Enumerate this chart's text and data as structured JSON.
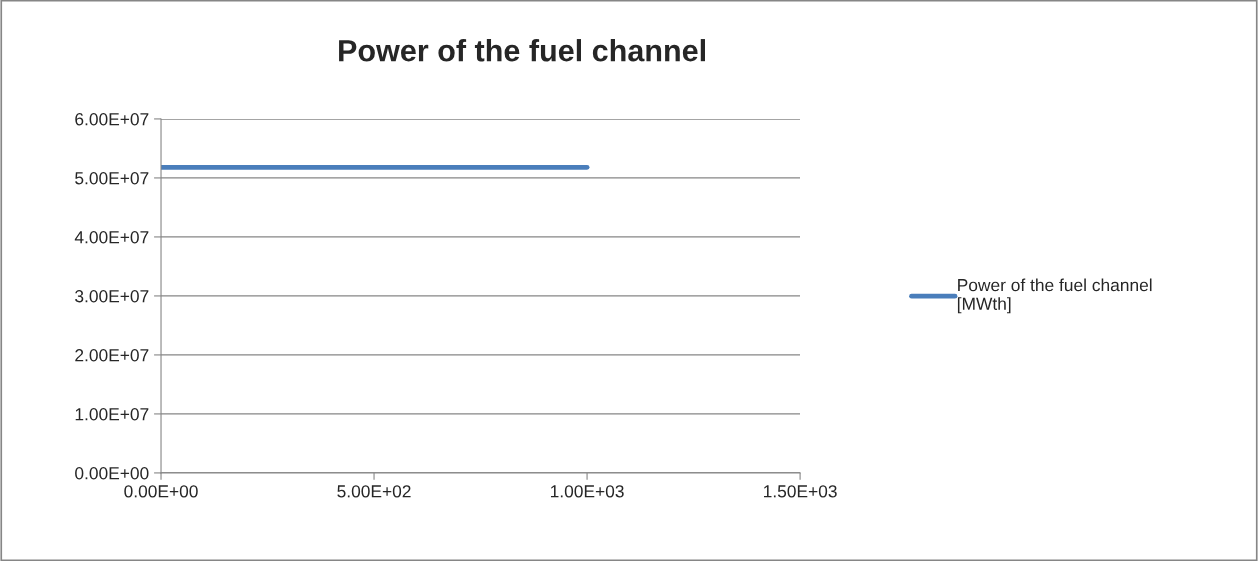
{
  "chart_data": {
    "type": "line",
    "title": "Power of the fuel channel",
    "x": [
      0,
      1000
    ],
    "series": [
      {
        "name": "Power of the fuel channel [MWth]",
        "color": "#4a7ebb",
        "values": [
          51800000,
          51800000
        ]
      }
    ],
    "xlim": [
      0,
      1500
    ],
    "xticks": [
      {
        "value": 0,
        "label": "0.00E+00"
      },
      {
        "value": 500,
        "label": "5.00E+02"
      },
      {
        "value": 1000,
        "label": "1.00E+03"
      },
      {
        "value": 1500,
        "label": "1.50E+03"
      }
    ],
    "ylim": [
      0,
      60000000
    ],
    "yticks": [
      {
        "value": 0,
        "label": "0.00E+00"
      },
      {
        "value": 10000000,
        "label": "1.00E+07"
      },
      {
        "value": 20000000,
        "label": "2.00E+07"
      },
      {
        "value": 30000000,
        "label": "3.00E+07"
      },
      {
        "value": 40000000,
        "label": "4.00E+07"
      },
      {
        "value": 50000000,
        "label": "5.00E+07"
      },
      {
        "value": 60000000,
        "label": "6.00E+07"
      }
    ],
    "grid": "y",
    "legend": "right",
    "marker": "none",
    "line_style": "solid"
  }
}
